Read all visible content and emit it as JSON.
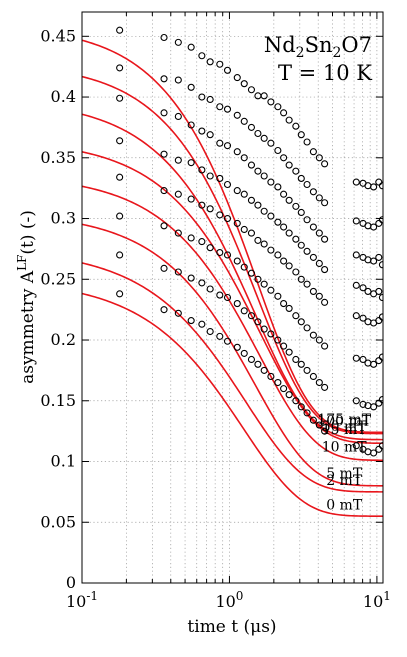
{
  "chart_data": {
    "type": "scatter",
    "title": "",
    "annotation_lines": [
      "Nd2Sn2O7",
      "T = 10 K"
    ],
    "xlabel": "time t (μs)",
    "ylabel": "asymmetry A^LF(t) (-)",
    "xscale": "log",
    "xlim": [
      0.1,
      11
    ],
    "ylim": [
      0,
      0.47
    ],
    "grid": true,
    "x_tick_labels": [
      "10^-1",
      "10^0",
      "10^1"
    ],
    "y_ticks": [
      "0",
      "0.05",
      "0.1",
      "0.15",
      "0.2",
      "0.25",
      "0.3",
      "0.35",
      "0.4",
      "0.45"
    ],
    "colors": {
      "fit": "#e8161c",
      "points": "#000000"
    },
    "series": [
      {
        "name": "175 mT",
        "fit": {
          "a0": 0.459,
          "a1": 0.335,
          "tau": 1.55,
          "beta": 1.2
        },
        "points": [
          [
            0.18,
            0.455
          ],
          [
            0.36,
            0.449
          ],
          [
            0.45,
            0.445
          ],
          [
            0.55,
            0.441
          ],
          [
            0.65,
            0.434
          ],
          [
            0.74,
            0.429
          ],
          [
            0.86,
            0.427
          ],
          [
            0.97,
            0.422
          ],
          [
            1.13,
            0.416
          ],
          [
            1.26,
            0.411
          ],
          [
            1.41,
            0.406
          ],
          [
            1.56,
            0.401
          ],
          [
            1.72,
            0.401
          ],
          [
            1.91,
            0.396
          ],
          [
            2.13,
            0.392
          ],
          [
            2.33,
            0.387
          ],
          [
            2.54,
            0.381
          ],
          [
            2.82,
            0.376
          ],
          [
            3.07,
            0.369
          ],
          [
            3.36,
            0.363
          ],
          [
            3.71,
            0.355
          ],
          [
            4.07,
            0.35
          ],
          [
            4.42,
            0.345
          ],
          [
            7.25,
            0.33
          ],
          [
            8.05,
            0.329
          ],
          [
            8.7,
            0.327
          ],
          [
            9.5,
            0.326
          ],
          [
            10.3,
            0.33
          ],
          [
            10.9,
            0.327
          ]
        ]
      },
      {
        "name": "100 mT",
        "fit": {
          "a0": 0.428,
          "a1": 0.305,
          "tau": 1.55,
          "beta": 1.2
        },
        "points": [
          [
            0.18,
            0.424
          ],
          [
            0.36,
            0.415
          ],
          [
            0.45,
            0.414
          ],
          [
            0.55,
            0.408
          ],
          [
            0.65,
            0.4
          ],
          [
            0.74,
            0.398
          ],
          [
            0.86,
            0.392
          ],
          [
            0.97,
            0.39
          ],
          [
            1.13,
            0.385
          ],
          [
            1.26,
            0.38
          ],
          [
            1.41,
            0.375
          ],
          [
            1.56,
            0.37
          ],
          [
            1.72,
            0.366
          ],
          [
            1.91,
            0.362
          ],
          [
            2.13,
            0.356
          ],
          [
            2.33,
            0.35
          ],
          [
            2.54,
            0.344
          ],
          [
            2.82,
            0.339
          ],
          [
            3.07,
            0.333
          ],
          [
            3.36,
            0.328
          ],
          [
            3.71,
            0.322
          ],
          [
            4.07,
            0.317
          ],
          [
            4.42,
            0.313
          ],
          [
            7.25,
            0.298
          ],
          [
            8.05,
            0.296
          ],
          [
            8.7,
            0.294
          ],
          [
            9.5,
            0.293
          ],
          [
            10.3,
            0.296
          ],
          [
            10.9,
            0.299
          ]
        ]
      },
      {
        "name": "50 mT",
        "fit": {
          "a0": 0.398,
          "a1": 0.28,
          "tau": 1.5,
          "beta": 1.15
        },
        "points": [
          [
            0.18,
            0.399
          ],
          [
            0.36,
            0.387
          ],
          [
            0.45,
            0.384
          ],
          [
            0.55,
            0.377
          ],
          [
            0.65,
            0.372
          ],
          [
            0.74,
            0.369
          ],
          [
            0.86,
            0.362
          ],
          [
            0.97,
            0.36
          ],
          [
            1.13,
            0.355
          ],
          [
            1.26,
            0.35
          ],
          [
            1.41,
            0.344
          ],
          [
            1.56,
            0.339
          ],
          [
            1.72,
            0.335
          ],
          [
            1.91,
            0.33
          ],
          [
            2.13,
            0.326
          ],
          [
            2.33,
            0.32
          ],
          [
            2.54,
            0.315
          ],
          [
            2.82,
            0.31
          ],
          [
            3.07,
            0.305
          ],
          [
            3.36,
            0.299
          ],
          [
            3.71,
            0.293
          ],
          [
            4.07,
            0.288
          ],
          [
            4.42,
            0.283
          ],
          [
            7.25,
            0.27
          ],
          [
            8.05,
            0.268
          ],
          [
            8.7,
            0.266
          ],
          [
            9.5,
            0.265
          ],
          [
            10.3,
            0.268
          ],
          [
            10.9,
            0.262
          ]
        ]
      },
      {
        "name": "15 mT",
        "fit": {
          "a0": 0.365,
          "a1": 0.25,
          "tau": 1.6,
          "beta": 1.15
        },
        "points": [
          [
            0.18,
            0.364
          ],
          [
            0.36,
            0.353
          ],
          [
            0.45,
            0.348
          ],
          [
            0.55,
            0.346
          ],
          [
            0.65,
            0.34
          ],
          [
            0.74,
            0.335
          ],
          [
            0.86,
            0.333
          ],
          [
            0.97,
            0.328
          ],
          [
            1.13,
            0.323
          ],
          [
            1.26,
            0.32
          ],
          [
            1.41,
            0.315
          ],
          [
            1.56,
            0.311
          ],
          [
            1.72,
            0.306
          ],
          [
            1.91,
            0.302
          ],
          [
            2.13,
            0.297
          ],
          [
            2.33,
            0.293
          ],
          [
            2.54,
            0.288
          ],
          [
            2.82,
            0.283
          ],
          [
            3.07,
            0.278
          ],
          [
            3.36,
            0.273
          ],
          [
            3.71,
            0.268
          ],
          [
            4.07,
            0.263
          ],
          [
            4.42,
            0.258
          ],
          [
            7.25,
            0.245
          ],
          [
            8.05,
            0.243
          ],
          [
            8.7,
            0.24
          ],
          [
            9.5,
            0.238
          ],
          [
            10.3,
            0.24
          ],
          [
            10.9,
            0.235
          ]
        ]
      },
      {
        "name": "10 mT",
        "fit": {
          "a0": 0.336,
          "a1": 0.235,
          "tau": 1.6,
          "beta": 1.15
        },
        "points": [
          [
            0.18,
            0.334
          ],
          [
            0.36,
            0.323
          ],
          [
            0.45,
            0.32
          ],
          [
            0.55,
            0.316
          ],
          [
            0.65,
            0.311
          ],
          [
            0.74,
            0.308
          ],
          [
            0.86,
            0.303
          ],
          [
            0.97,
            0.3
          ],
          [
            1.13,
            0.296
          ],
          [
            1.26,
            0.291
          ],
          [
            1.41,
            0.288
          ],
          [
            1.56,
            0.282
          ],
          [
            1.72,
            0.279
          ],
          [
            1.91,
            0.274
          ],
          [
            2.13,
            0.27
          ],
          [
            2.33,
            0.265
          ],
          [
            2.54,
            0.261
          ],
          [
            2.82,
            0.256
          ],
          [
            3.07,
            0.25
          ],
          [
            3.36,
            0.246
          ],
          [
            3.71,
            0.24
          ],
          [
            4.07,
            0.236
          ],
          [
            4.42,
            0.231
          ],
          [
            7.25,
            0.22
          ],
          [
            8.05,
            0.218
          ],
          [
            8.7,
            0.215
          ],
          [
            9.5,
            0.214
          ],
          [
            10.3,
            0.216
          ],
          [
            10.9,
            0.219
          ]
        ]
      },
      {
        "name": "5 mT",
        "fit": {
          "a0": 0.305,
          "a1": 0.225,
          "tau": 1.5,
          "beta": 1.15
        },
        "points": [
          [
            0.18,
            0.302
          ],
          [
            0.36,
            0.294
          ],
          [
            0.45,
            0.288
          ],
          [
            0.55,
            0.284
          ],
          [
            0.65,
            0.281
          ],
          [
            0.74,
            0.276
          ],
          [
            0.86,
            0.272
          ],
          [
            0.97,
            0.27
          ],
          [
            1.13,
            0.265
          ],
          [
            1.26,
            0.26
          ],
          [
            1.41,
            0.255
          ],
          [
            1.56,
            0.25
          ],
          [
            1.72,
            0.246
          ],
          [
            1.91,
            0.241
          ],
          [
            2.13,
            0.236
          ],
          [
            2.33,
            0.23
          ],
          [
            2.54,
            0.226
          ],
          [
            2.82,
            0.22
          ],
          [
            3.07,
            0.215
          ],
          [
            3.36,
            0.21
          ],
          [
            3.71,
            0.204
          ],
          [
            4.07,
            0.2
          ],
          [
            4.42,
            0.195
          ],
          [
            7.25,
            0.185
          ],
          [
            8.05,
            0.184
          ],
          [
            8.7,
            0.181
          ],
          [
            9.5,
            0.18
          ],
          [
            10.3,
            0.183
          ],
          [
            10.9,
            0.186
          ]
        ]
      },
      {
        "name": "2 mT",
        "fit": {
          "a0": 0.275,
          "a1": 0.2,
          "tau": 1.3,
          "beta": 1.1
        },
        "points": [
          [
            0.18,
            0.27
          ],
          [
            0.36,
            0.259
          ],
          [
            0.45,
            0.256
          ],
          [
            0.55,
            0.251
          ],
          [
            0.65,
            0.247
          ],
          [
            0.74,
            0.242
          ],
          [
            0.86,
            0.237
          ],
          [
            0.97,
            0.235
          ],
          [
            1.13,
            0.23
          ],
          [
            1.26,
            0.224
          ],
          [
            1.41,
            0.22
          ],
          [
            1.56,
            0.215
          ],
          [
            1.72,
            0.209
          ],
          [
            1.91,
            0.205
          ],
          [
            2.13,
            0.2
          ],
          [
            2.33,
            0.195
          ],
          [
            2.54,
            0.19
          ],
          [
            2.82,
            0.184
          ],
          [
            3.07,
            0.18
          ],
          [
            3.36,
            0.175
          ],
          [
            3.71,
            0.17
          ],
          [
            4.07,
            0.165
          ],
          [
            4.42,
            0.161
          ],
          [
            7.25,
            0.15
          ],
          [
            8.05,
            0.147
          ],
          [
            8.7,
            0.146
          ],
          [
            9.5,
            0.145
          ],
          [
            10.3,
            0.148
          ],
          [
            10.9,
            0.151
          ]
        ]
      },
      {
        "name": "0 mT",
        "fit": {
          "a0": 0.25,
          "a1": 0.195,
          "tau": 1.25,
          "beta": 1.1
        },
        "points": [
          [
            0.18,
            0.238
          ],
          [
            0.36,
            0.225
          ],
          [
            0.45,
            0.222
          ],
          [
            0.55,
            0.216
          ],
          [
            0.65,
            0.213
          ],
          [
            0.74,
            0.207
          ],
          [
            0.86,
            0.203
          ],
          [
            0.97,
            0.199
          ],
          [
            1.13,
            0.194
          ],
          [
            1.26,
            0.189
          ],
          [
            1.41,
            0.184
          ],
          [
            1.56,
            0.18
          ],
          [
            1.72,
            0.175
          ],
          [
            1.91,
            0.17
          ],
          [
            2.13,
            0.165
          ],
          [
            2.33,
            0.16
          ],
          [
            2.54,
            0.155
          ],
          [
            2.82,
            0.15
          ],
          [
            3.07,
            0.145
          ],
          [
            3.36,
            0.14
          ],
          [
            3.71,
            0.134
          ],
          [
            4.07,
            0.13
          ],
          [
            4.42,
            0.125
          ],
          [
            7.25,
            0.113
          ],
          [
            8.05,
            0.11
          ],
          [
            8.7,
            0.108
          ],
          [
            9.5,
            0.107
          ],
          [
            10.3,
            0.11
          ],
          [
            10.9,
            0.113
          ]
        ]
      }
    ]
  }
}
